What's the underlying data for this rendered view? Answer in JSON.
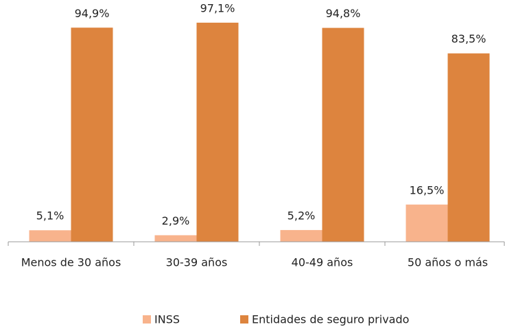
{
  "chart_data": {
    "type": "bar",
    "categories": [
      "Menos de 30 años",
      "30-39 años",
      "40-49 años",
      "50 años o más"
    ],
    "series": [
      {
        "name": "INSS",
        "color": "#f8b38c",
        "values": [
          5.1,
          2.9,
          5.2,
          16.5
        ],
        "value_labels": [
          "5,1%",
          "2,9%",
          "5,2%",
          "16,5%"
        ]
      },
      {
        "name": "Entidades de seguro privado",
        "color": "#dd843e",
        "values": [
          94.9,
          97.1,
          94.8,
          83.5
        ],
        "value_labels": [
          "94,9%",
          "97,1%",
          "94,8%",
          "83,5%"
        ]
      }
    ]
  }
}
